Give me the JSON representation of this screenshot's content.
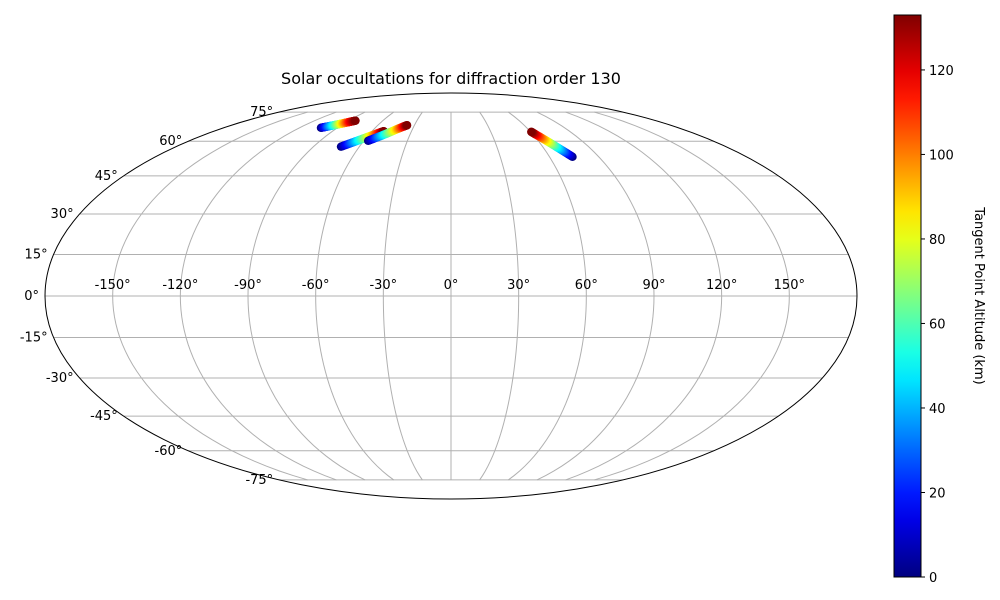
{
  "chart_data": {
    "type": "scatter",
    "projection": "mollweide",
    "title": "Solar occultations for diffraction order 130",
    "grid": true,
    "lon_ticks": [
      -150,
      -120,
      -90,
      -60,
      -30,
      0,
      30,
      60,
      90,
      120,
      150
    ],
    "lat_ticks": [
      -75,
      -60,
      -45,
      -30,
      -15,
      0,
      15,
      30,
      45,
      60,
      75
    ],
    "lon_tick_labels": [
      "-150°",
      "-120°",
      "-90°",
      "-60°",
      "-30°",
      "0°",
      "30°",
      "60°",
      "90°",
      "120°",
      "150°"
    ],
    "lat_tick_labels": [
      "-75°",
      "-60°",
      "-45°",
      "-30°",
      "-15°",
      "0°",
      "15°",
      "30°",
      "45°",
      "60°",
      "75°"
    ],
    "colorbar": {
      "label": "Tangent Point Altitude (km)",
      "range": [
        0,
        133
      ],
      "ticks": [
        0,
        20,
        40,
        60,
        80,
        100,
        120
      ],
      "tick_labels": [
        "0",
        "20",
        "40",
        "60",
        "80",
        "100",
        "120"
      ],
      "colormap": "jet"
    },
    "series": [
      {
        "points": [
          {
            "lon": -103,
            "lat": 66.5,
            "alt": 0
          },
          {
            "lon": -99,
            "lat": 67.2,
            "alt": 30
          },
          {
            "lon": -95,
            "lat": 68.0,
            "alt": 60
          },
          {
            "lon": -91,
            "lat": 68.8,
            "alt": 90
          },
          {
            "lon": -87,
            "lat": 69.6,
            "alt": 118
          },
          {
            "lon": -84,
            "lat": 70.2,
            "alt": 133
          }
        ]
      },
      {
        "points": [
          {
            "lon": -72,
            "lat": 57.5,
            "alt": 0
          },
          {
            "lon": -67,
            "lat": 59.3,
            "alt": 30
          },
          {
            "lon": -62,
            "lat": 61.1,
            "alt": 60
          },
          {
            "lon": -57,
            "lat": 62.9,
            "alt": 90
          },
          {
            "lon": -53,
            "lat": 64.2,
            "alt": 118
          },
          {
            "lon": -51,
            "lat": 64.8,
            "alt": 133
          }
        ]
      },
      {
        "points": [
          {
            "lon": -57,
            "lat": 60.2,
            "alt": 0
          },
          {
            "lon": -52,
            "lat": 62.0,
            "alt": 30
          },
          {
            "lon": -47,
            "lat": 63.8,
            "alt": 60
          },
          {
            "lon": -42,
            "lat": 65.8,
            "alt": 90
          },
          {
            "lon": -38,
            "lat": 67.2,
            "alt": 118
          },
          {
            "lon": -36,
            "lat": 67.8,
            "alt": 133
          }
        ]
      },
      {
        "points": [
          {
            "lon": 74,
            "lat": 53.0,
            "alt": 0
          },
          {
            "lon": 71,
            "lat": 55.6,
            "alt": 30
          },
          {
            "lon": 68,
            "lat": 58.2,
            "alt": 60
          },
          {
            "lon": 65,
            "lat": 60.8,
            "alt": 90
          },
          {
            "lon": 62,
            "lat": 63.2,
            "alt": 118
          },
          {
            "lon": 60.5,
            "lat": 64.5,
            "alt": 133
          }
        ]
      }
    ]
  }
}
